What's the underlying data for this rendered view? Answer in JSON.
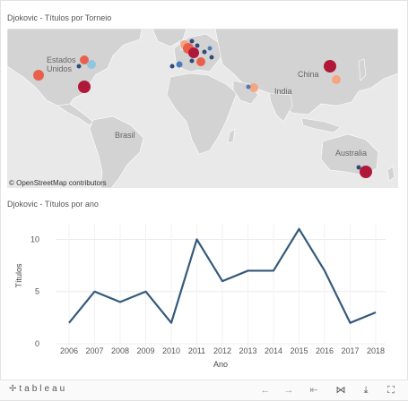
{
  "map": {
    "title": "Djokovic - Títulos por Torneio",
    "attribution": "© OpenStreetMap contributors",
    "labels": [
      "Estados Unidos",
      "Brasil",
      "India",
      "China",
      "Australia"
    ],
    "colors": {
      "land": "#d3d3d3",
      "water": "#e9e9e9",
      "dark_red": "#b01839",
      "red": "#e8604c",
      "salmon": "#f4a582",
      "light_blue": "#92c5de",
      "mid_blue": "#4a7db8",
      "dark_blue": "#2f4b7c"
    }
  },
  "chart_data": {
    "type": "line",
    "title": "Djokovic - Títulos por ano",
    "xlabel": "Ano",
    "ylabel": "Títulos",
    "x": [
      "2006",
      "2007",
      "2008",
      "2009",
      "2010",
      "2011",
      "2012",
      "2013",
      "2014",
      "2015",
      "2016",
      "2017",
      "2018"
    ],
    "values": [
      2,
      5,
      4,
      5,
      2,
      10,
      6,
      7,
      7,
      11,
      7,
      2,
      3
    ],
    "yticks": [
      "0",
      "5",
      "10"
    ],
    "ylim": [
      0,
      11.5
    ],
    "color": "#35597a",
    "grid": true
  },
  "toolbar": {
    "logo": "tableau",
    "buttons": [
      "undo-icon",
      "redo-icon",
      "revert-icon",
      "share-icon",
      "download-icon",
      "fullscreen-icon"
    ]
  }
}
